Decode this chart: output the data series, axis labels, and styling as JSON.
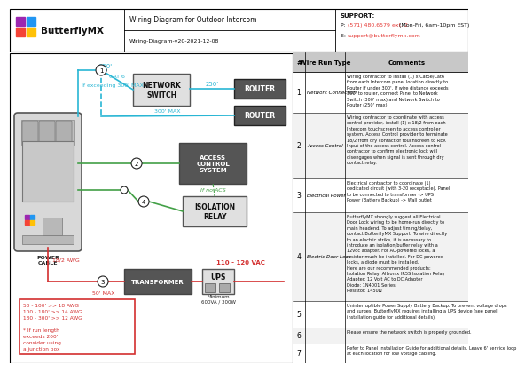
{
  "title": "Wiring Diagram for Outdoor Intercom",
  "subtitle": "Wiring-Diagram-v20-2021-12-08",
  "support_title": "SUPPORT:",
  "support_phone_plain": "P: ",
  "support_phone_red": "(571) 480.6579 ext. 2",
  "support_phone_end": " (Mon-Fri, 6am-10pm EST)",
  "support_email_plain": "E: ",
  "support_email_red": "support@butterflymx.com",
  "logo_colors": [
    "#9c27b0",
    "#2196f3",
    "#f44336",
    "#ffc107"
  ],
  "cyan": "#29b6d4",
  "green": "#43a047",
  "red": "#d32f2f",
  "dark_box": "#555555",
  "light_box": "#e0e0e0",
  "table_rows": [
    {
      "num": "1",
      "type": "Network Connection",
      "comment": "Wiring contractor to install (1) x Cat5e/Cat6\nfrom each Intercom panel location directly to\nRouter if under 300'. If wire distance exceeds\n300' to router, connect Panel to Network\nSwitch (300' max) and Network Switch to\nRouter (250' max)."
    },
    {
      "num": "2",
      "type": "Access Control",
      "comment": "Wiring contractor to coordinate with access\ncontrol provider, install (1) x 18/2 from each\nIntercom touchscreen to access controller\nsystem. Access Control provider to terminate\n18/2 from dry contact of touchscreen to REX\nInput of the access control. Access control\ncontractor to confirm electronic lock will\ndisengages when signal is sent through dry\ncontact relay."
    },
    {
      "num": "3",
      "type": "Electrical Power",
      "comment": "Electrical contractor to coordinate (1)\ndedicated circuit (with 3-20 receptacle). Panel\nto be connected to transformer -> UPS\nPower (Battery Backup) -> Wall outlet"
    },
    {
      "num": "4",
      "type": "Electric Door Lock",
      "comment": "ButterflyMX strongly suggest all Electrical\nDoor Lock wiring to be home-run directly to\nmain headend. To adjust timing/delay,\ncontact ButterflyMX Support. To wire directly\nto an electric strike, it is necessary to\nintroduce an isolation/buffer relay with a\n12vdc adapter. For AC-powered locks, a\nresistor much be installed. For DC-powered\nlocks, a diode must be installed.\nHere are our recommended products:\nIsolation Relay: Altronix IR5S Isolation Relay\nAdapter: 12 Volt AC to DC Adapter\nDiode: 1N4001 Series\nResistor: 1450Ω"
    },
    {
      "num": "5",
      "type": "",
      "comment": "Uninterruptible Power Supply Battery Backup. To prevent voltage drops\nand surges, ButterflyMX requires installing a UPS device (see panel\ninstallation guide for additional details)."
    },
    {
      "num": "6",
      "type": "",
      "comment": "Please ensure the network switch is properly grounded."
    },
    {
      "num": "7",
      "type": "",
      "comment": "Refer to Panel Installation Guide for additional details. Leave 6' service loop\nat each location for low voltage cabling."
    }
  ]
}
